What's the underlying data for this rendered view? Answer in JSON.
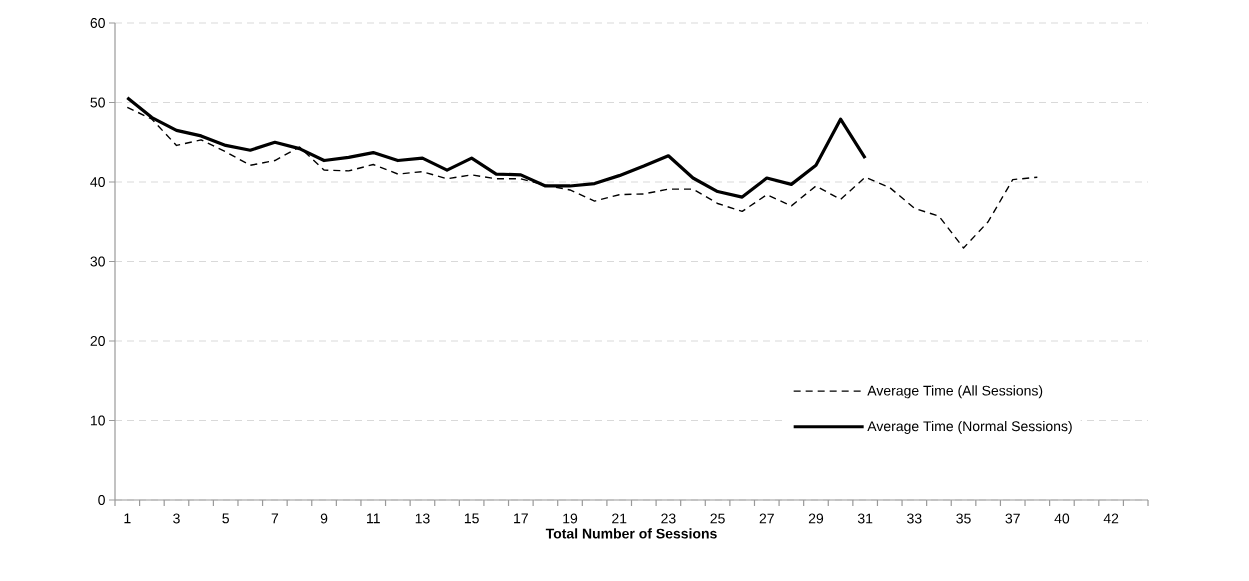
{
  "chart_data": {
    "type": "line",
    "xlabel": "Total Number of Sessions",
    "categories": [
      "1",
      null,
      "3",
      null,
      "5",
      null,
      "7",
      null,
      "9",
      null,
      "11",
      null,
      "13",
      null,
      "15",
      null,
      "17",
      null,
      "19",
      null,
      "21",
      null,
      "23",
      null,
      "25",
      null,
      "27",
      null,
      "29",
      null,
      "31",
      null,
      "33",
      null,
      "35",
      null,
      "37",
      null,
      "40",
      null,
      "42",
      null
    ],
    "series": [
      {
        "name": "Average Time (All Sessions)",
        "color": "#000000",
        "line_style": "dashed",
        "values": [
          49.4,
          47.9,
          44.6,
          45.3,
          43.8,
          42.1,
          42.7,
          44.4,
          41.5,
          41.4,
          42.2,
          41.0,
          41.3,
          40.4,
          40.9,
          40.4,
          40.4,
          39.6,
          39.0,
          37.6,
          38.4,
          38.5,
          39.1,
          39.1,
          37.3,
          36.3,
          38.4,
          37.0,
          39.5,
          37.8,
          40.6,
          39.3,
          36.7,
          35.7,
          31.7,
          35.0,
          40.3,
          40.6,
          null,
          null,
          null,
          null
        ]
      },
      {
        "name": "Average Time (Normal Sessions)",
        "color": "#000000",
        "line_style": "solid",
        "values": [
          50.6,
          48.1,
          46.5,
          45.8,
          44.6,
          44.0,
          45.0,
          44.2,
          42.7,
          43.1,
          43.7,
          42.7,
          43.0,
          41.5,
          43.0,
          41.0,
          40.9,
          39.5,
          39.5,
          39.8,
          40.8,
          42.0,
          43.3,
          40.5,
          38.8,
          38.1,
          40.5,
          39.7,
          42.1,
          47.9,
          43.0,
          null,
          null,
          null,
          null,
          null,
          null,
          null,
          null,
          null,
          null,
          null
        ]
      }
    ],
    "ylim": [
      0,
      60
    ],
    "yticks": [
      0,
      10,
      20,
      30,
      40,
      50,
      60
    ],
    "grid": "y",
    "legend": "bottom right"
  }
}
